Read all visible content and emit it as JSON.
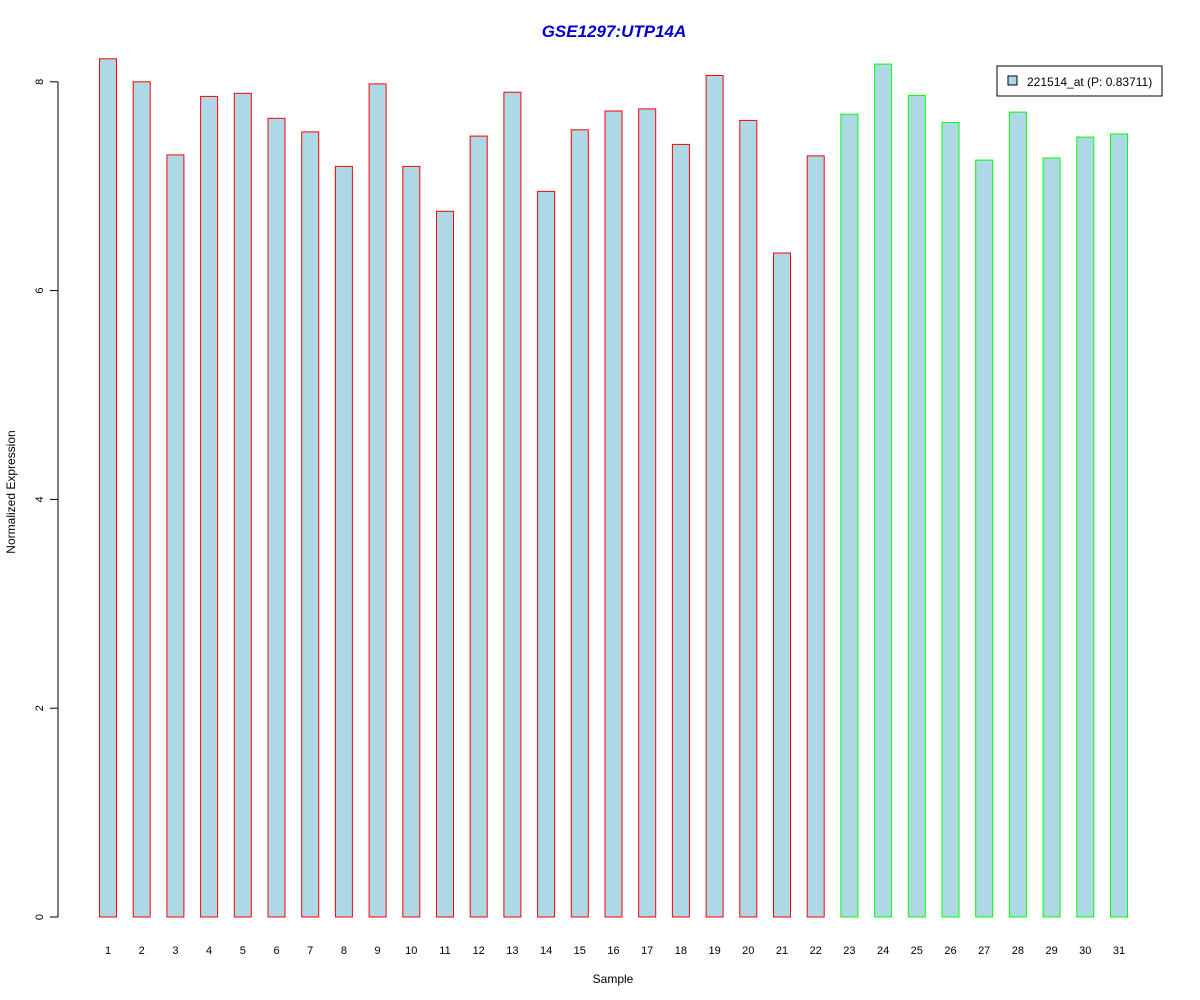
{
  "chart_data": {
    "type": "bar",
    "title": "GSE1297:UTP14A",
    "xlabel": "Sample",
    "ylabel": "Normalized Expression",
    "ylim": [
      0,
      8.2
    ],
    "yticks": [
      0,
      2,
      4,
      6,
      8
    ],
    "grid": false,
    "categories": [
      "1",
      "2",
      "3",
      "4",
      "5",
      "6",
      "7",
      "8",
      "9",
      "10",
      "11",
      "12",
      "13",
      "14",
      "15",
      "16",
      "17",
      "18",
      "19",
      "20",
      "21",
      "22",
      "23",
      "24",
      "25",
      "26",
      "27",
      "28",
      "29",
      "30",
      "31"
    ],
    "series": [
      {
        "name": "221514_at (P: 0.83711)",
        "values": [
          8.22,
          8.0,
          7.3,
          7.86,
          7.89,
          7.65,
          7.52,
          7.19,
          7.98,
          7.19,
          6.76,
          7.48,
          7.9,
          6.95,
          7.54,
          7.72,
          7.74,
          7.4,
          8.06,
          7.63,
          6.36,
          7.29,
          7.69,
          8.17,
          7.87,
          7.61,
          7.25,
          7.71,
          7.27,
          7.47,
          7.5
        ]
      }
    ],
    "bar_fill": "#add8e6",
    "group_border_colors": [
      "#ff0000",
      "#ff0000",
      "#ff0000",
      "#ff0000",
      "#ff0000",
      "#ff0000",
      "#ff0000",
      "#ff0000",
      "#ff0000",
      "#ff0000",
      "#ff0000",
      "#ff0000",
      "#ff0000",
      "#ff0000",
      "#ff0000",
      "#ff0000",
      "#ff0000",
      "#ff0000",
      "#ff0000",
      "#ff0000",
      "#ff0000",
      "#ff0000",
      "#00ff00",
      "#00ff00",
      "#00ff00",
      "#00ff00",
      "#00ff00",
      "#00ff00",
      "#00ff00",
      "#00ff00",
      "#00ff00"
    ],
    "title_color": "#0000cc",
    "legend": {
      "position": "top-right",
      "label": "221514_at (P: 0.83711)"
    }
  }
}
